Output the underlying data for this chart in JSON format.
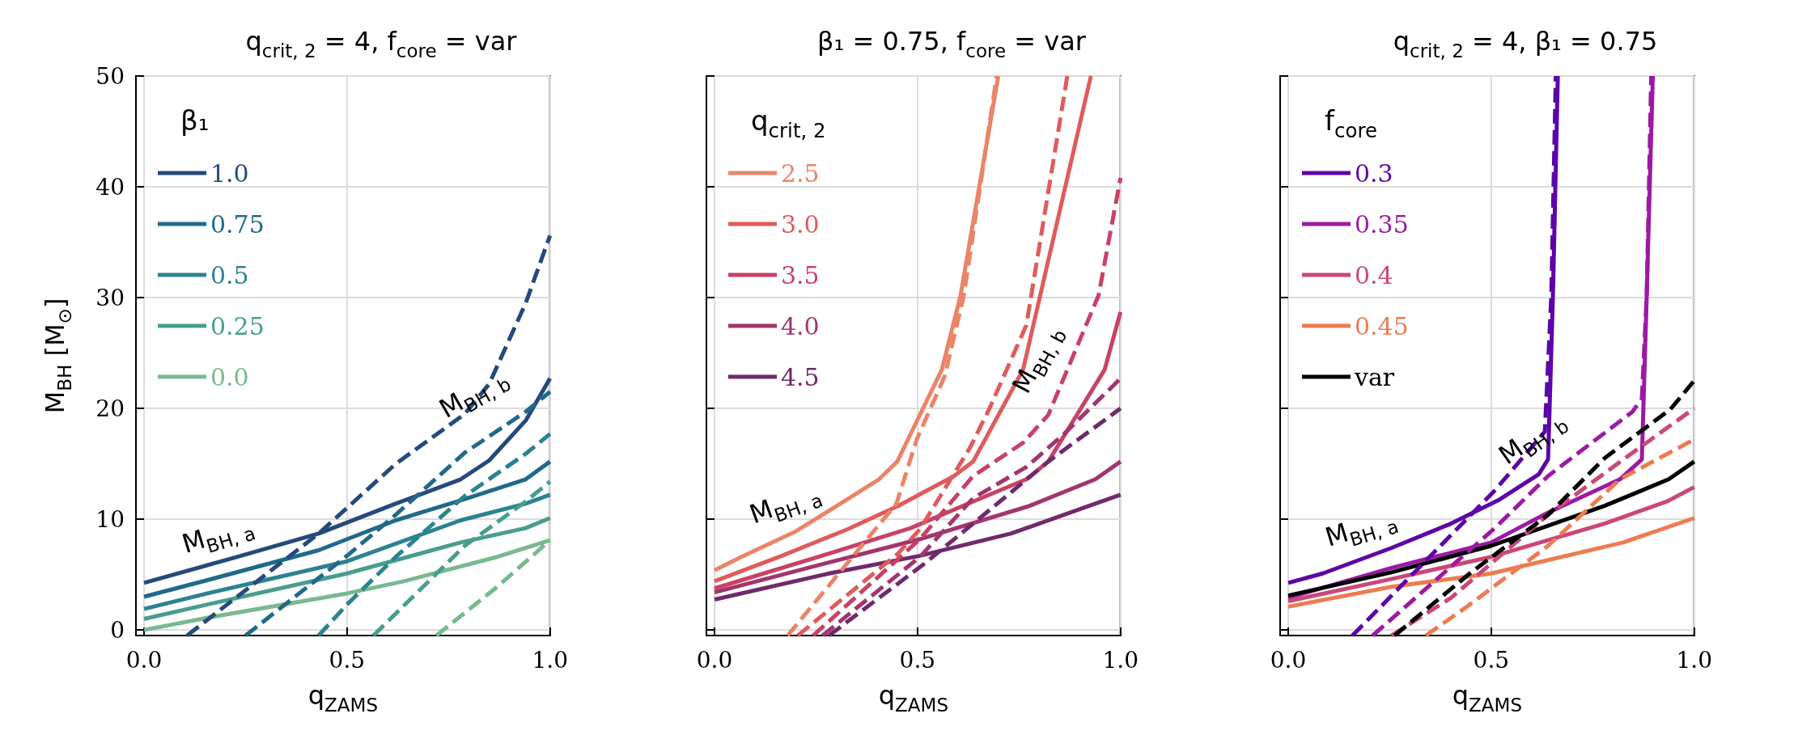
{
  "chart_data": [
    {
      "type": "line",
      "title": "q$_{crit, 2}$ = 4, f$_{core}$ = var",
      "xlabel": "q$_{ZAMS}$",
      "ylabel": "M$_{BH}$ [M$_{⊙}$]",
      "legend_title": "β₁",
      "legend": "top left",
      "grid": true,
      "marker": "none",
      "xlim": [
        -0.02,
        1.0
      ],
      "xticks": [
        {
          "value": 0,
          "label": "0.0"
        },
        {
          "value": 0.5,
          "label": "0.5"
        },
        {
          "value": 1,
          "label": "1.0"
        }
      ],
      "ylim": [
        -0.5,
        50
      ],
      "yticks": [
        0,
        10,
        20,
        30,
        40,
        50
      ],
      "annotations": [
        "M$_{BH, a}$",
        "M$_{BH, b}$"
      ],
      "series": [
        {
          "name": "1.0",
          "color": "#26497c",
          "line_style": "solid",
          "x": [
            0,
            0.23,
            0.43,
            0.62,
            0.78,
            0.85,
            0.94,
            1.0
          ],
          "values": [
            4.25,
            6.6,
            8.7,
            11.4,
            13.6,
            15.3,
            18.9,
            22.7
          ]
        },
        {
          "name": "0.75",
          "color": "#1f6a8a",
          "line_style": "solid",
          "x": [
            0,
            0.156,
            0.43,
            0.62,
            0.78,
            0.94,
            1.0
          ],
          "values": [
            3.0,
            4.5,
            7.2,
            9.9,
            11.7,
            13.6,
            15.2
          ]
        },
        {
          "name": "0.5",
          "color": "#2c8290",
          "line_style": "solid",
          "x": [
            0,
            0.156,
            0.5,
            0.78,
            0.94,
            1.0
          ],
          "values": [
            1.9,
            3.3,
            6.2,
            9.9,
            11.4,
            12.2
          ]
        },
        {
          "name": "0.25",
          "color": "#489d8e",
          "line_style": "solid",
          "x": [
            0,
            0.156,
            0.5,
            0.78,
            0.94,
            1.0
          ],
          "values": [
            1.0,
            2.3,
            5.1,
            7.9,
            9.2,
            10.1
          ]
        },
        {
          "name": "0.0",
          "color": "#78b98f",
          "line_style": "solid",
          "x": [
            0,
            0.156,
            0.5,
            0.64,
            0.87,
            1.0
          ],
          "values": [
            0.0,
            1.1,
            3.3,
            4.4,
            6.6,
            8.1
          ]
        },
        {
          "color": "#26497c",
          "line_style": "dashed",
          "x": [
            0.106,
            0.43,
            0.62,
            0.79,
            0.85,
            0.94,
            1.0
          ],
          "values": [
            -0.5,
            8.7,
            15.0,
            19.5,
            22.2,
            29.5,
            35.6
          ]
        },
        {
          "color": "#1f6a8a",
          "line_style": "dashed",
          "x": [
            0.25,
            0.5,
            0.62,
            0.79,
            0.94,
            1.0
          ],
          "values": [
            -0.5,
            6.7,
            10.4,
            16.0,
            19.7,
            21.5
          ]
        },
        {
          "color": "#2c8290",
          "line_style": "dashed",
          "x": [
            0.43,
            0.5,
            0.62,
            0.79,
            0.94,
            1.0
          ],
          "values": [
            -0.5,
            2.3,
            6.6,
            12.1,
            15.9,
            17.7
          ]
        },
        {
          "color": "#489d8e",
          "line_style": "dashed",
          "x": [
            0.565,
            0.79,
            0.94,
            1.0
          ],
          "values": [
            -0.5,
            7.6,
            11.6,
            13.4
          ]
        },
        {
          "color": "#78b98f",
          "line_style": "dashed",
          "x": [
            0.72,
            0.87,
            1.0
          ],
          "values": [
            -0.5,
            3.9,
            8.1
          ]
        }
      ]
    },
    {
      "type": "line",
      "title": "β₁ = 0.75, f$_{core}$ = var",
      "xlabel": "q$_{ZAMS}$",
      "legend_title": "q$_{crit, 2}$",
      "legend": "top left",
      "grid": true,
      "marker": "none",
      "tick_labels": "x",
      "xlim": [
        -0.02,
        1.0
      ],
      "xticks": [
        {
          "value": 0,
          "label": "0.0"
        },
        {
          "value": 0.5,
          "label": "0.5"
        },
        {
          "value": 1,
          "label": "1.0"
        }
      ],
      "ylim": [
        -0.5,
        50
      ],
      "yticks": [
        0,
        10,
        20,
        30,
        40,
        50
      ],
      "annotations": [
        "M$_{BH, a}$",
        "M$_{BH, b}$"
      ],
      "series": [
        {
          "name": "2.5",
          "color": "#eb8468",
          "line_style": "solid",
          "x": [
            0,
            0.066,
            0.2,
            0.31,
            0.405,
            0.45,
            0.56,
            0.606,
            0.699
          ],
          "values": [
            5.4,
            6.6,
            8.9,
            11.4,
            13.6,
            15.2,
            23.5,
            30.2,
            50
          ]
        },
        {
          "name": "3.0",
          "color": "#df5b5c",
          "line_style": "solid",
          "x": [
            0,
            0.166,
            0.328,
            0.452,
            0.59,
            0.637,
            0.76,
            0.927
          ],
          "values": [
            4.4,
            6.7,
            9.1,
            11.2,
            13.9,
            15.2,
            23.5,
            50
          ]
        },
        {
          "name": "3.5",
          "color": "#c84265",
          "line_style": "solid",
          "x": [
            0,
            0.282,
            0.483,
            0.637,
            0.768,
            0.822,
            0.961,
            1.0
          ],
          "values": [
            3.75,
            6.9,
            9.2,
            11.6,
            13.6,
            15.2,
            23.5,
            28.7
          ]
        },
        {
          "name": "4.0",
          "color": "#a2356e",
          "line_style": "solid",
          "x": [
            0,
            0.282,
            0.506,
            0.776,
            0.938,
            1.0
          ],
          "values": [
            3.4,
            6.1,
            8.2,
            11.2,
            13.6,
            15.2
          ]
        },
        {
          "name": "4.5",
          "color": "#6f2a6c",
          "line_style": "solid",
          "x": [
            0,
            0.282,
            0.506,
            0.73,
            0.938,
            1.0
          ],
          "values": [
            2.75,
            5.1,
            6.7,
            8.7,
            11.4,
            12.2
          ]
        },
        {
          "color": "#eb8468",
          "line_style": "dashed",
          "x": [
            0.18,
            0.448,
            0.498,
            0.567,
            0.614,
            0.695
          ],
          "values": [
            -0.5,
            11.4,
            17.2,
            22.9,
            30.2,
            50
          ]
        },
        {
          "color": "#df5b5c",
          "line_style": "dashed",
          "x": [
            0.205,
            0.452,
            0.506,
            0.63,
            0.676,
            0.768,
            0.869
          ],
          "values": [
            -0.5,
            6.9,
            9.1,
            16.5,
            19.9,
            27.5,
            50
          ]
        },
        {
          "color": "#c84265",
          "line_style": "dashed",
          "x": [
            0.243,
            0.506,
            0.637,
            0.76,
            0.822,
            0.946,
            1.0
          ],
          "values": [
            -0.5,
            8.2,
            13.9,
            16.9,
            19.4,
            30.2,
            40.8
          ]
        },
        {
          "color": "#a2356e",
          "line_style": "dashed",
          "x": [
            0.266,
            0.506,
            0.637,
            0.768,
            0.861,
            1.0
          ],
          "values": [
            -0.5,
            6.6,
            11.9,
            14.7,
            17.7,
            22.7
          ]
        },
        {
          "color": "#6f2a6c",
          "line_style": "dashed",
          "x": [
            0.282,
            0.514,
            0.637,
            0.822,
            1.0
          ],
          "values": [
            -0.5,
            5.9,
            9.6,
            15.2,
            20.0
          ]
        }
      ]
    },
    {
      "type": "line",
      "title": "q$_{crit, 2}$ = 4, β₁ = 0.75",
      "xlabel": "q$_{ZAMS}$",
      "legend_title": "f$_{core}$",
      "legend": "top left",
      "grid": true,
      "marker": "none",
      "tick_labels": "x",
      "xlim": [
        -0.02,
        1.0
      ],
      "xticks": [
        {
          "value": 0,
          "label": "0.0"
        },
        {
          "value": 0.5,
          "label": "0.5"
        },
        {
          "value": 1,
          "label": "1.0"
        }
      ],
      "ylim": [
        -0.5,
        50
      ],
      "yticks": [
        0,
        10,
        20,
        30,
        40,
        50
      ],
      "annotations": [
        "M$_{BH, a}$",
        "M$_{BH, b}$"
      ],
      "series": [
        {
          "name": "0.3",
          "color": "#5c06a8",
          "line_style": "solid",
          "x": [
            0,
            0.085,
            0.254,
            0.401,
            0.517,
            0.617,
            0.64,
            0.652,
            0.664
          ],
          "values": [
            4.25,
            5.1,
            7.4,
            9.6,
            11.7,
            14.05,
            15.4,
            30.2,
            50
          ]
        },
        {
          "name": "0.35",
          "color": "#9c1aa3",
          "line_style": "solid",
          "x": [
            0,
            0.254,
            0.5,
            0.64,
            0.817,
            0.871,
            0.883,
            0.898
          ],
          "values": [
            2.9,
            5.6,
            7.9,
            10.6,
            13.6,
            15.4,
            30.2,
            50
          ]
        },
        {
          "name": "0.4",
          "color": "#cc4778",
          "line_style": "solid",
          "x": [
            0,
            0.254,
            0.5,
            0.779,
            0.933,
            1.0
          ],
          "values": [
            2.6,
            4.6,
            6.6,
            9.6,
            11.6,
            12.9
          ]
        },
        {
          "name": "0.45",
          "color": "#ee7b51",
          "line_style": "solid",
          "x": [
            0,
            0.254,
            0.5,
            0.825,
            1.0
          ],
          "values": [
            2.1,
            3.9,
            5.1,
            7.9,
            10.1
          ]
        },
        {
          "name": "var",
          "color": "#000000",
          "line_style": "solid",
          "x": [
            0,
            0.254,
            0.5,
            0.779,
            0.937,
            1.0
          ],
          "values": [
            3.1,
            5.2,
            7.6,
            11.2,
            13.6,
            15.2
          ]
        },
        {
          "color": "#5c06a8",
          "line_style": "dashed",
          "x": [
            0.158,
            0.509,
            0.632,
            0.648,
            0.659
          ],
          "values": [
            -0.5,
            12.6,
            17.9,
            30.2,
            50
          ]
        },
        {
          "color": "#9c1aa3",
          "line_style": "dashed",
          "x": [
            0.208,
            0.509,
            0.64,
            0.848,
            0.871,
            0.883,
            0.894
          ],
          "values": [
            -0.5,
            9.2,
            13.9,
            19.7,
            20.9,
            30.2,
            50
          ]
        },
        {
          "color": "#cc4778",
          "line_style": "dashed",
          "x": [
            0.254,
            0.401,
            0.64,
            0.848,
            1.0
          ],
          "values": [
            -0.5,
            2.9,
            10.4,
            16.0,
            20.0
          ]
        },
        {
          "color": "#ee7b51",
          "line_style": "dashed",
          "x": [
            0.339,
            0.44,
            0.64,
            0.817,
            1.0
          ],
          "values": [
            -0.5,
            2.1,
            7.6,
            13.6,
            17.2
          ]
        },
        {
          "color": "#000000",
          "line_style": "dashed",
          "x": [
            0.262,
            0.447,
            0.64,
            0.779,
            0.941,
            1.0
          ],
          "values": [
            -0.5,
            5.1,
            10.4,
            15.5,
            19.9,
            22.5
          ]
        }
      ]
    }
  ]
}
